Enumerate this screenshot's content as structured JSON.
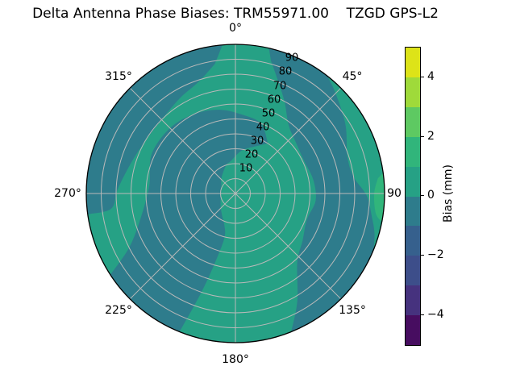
{
  "title": "Delta Antenna Phase Biases: TRM55971.00    TZGD GPS-L2",
  "chart_data": {
    "type": "heatmap",
    "subtype": "polar-filled-contour",
    "title": "Delta Antenna Phase Biases: TRM55971.00    TZGD GPS-L2",
    "angular_tick_labels": [
      "0°",
      "45°",
      "90",
      "135°",
      "180°",
      "225°",
      "270°",
      "315°"
    ],
    "radial_tick_labels": [
      "10",
      "20",
      "30",
      "40",
      "50",
      "60",
      "70",
      "80",
      "90"
    ],
    "radial_range": [
      0,
      100
    ],
    "grid": "on",
    "colorbar": {
      "label": "Bias (mm)",
      "tick_labels": [
        "4",
        "2",
        "0",
        "−2",
        "−4"
      ],
      "range": [
        -5,
        5
      ],
      "segment_colors_top_to_bottom": [
        "#dde318",
        "#9fda3a",
        "#5ec962",
        "#31b57b",
        "#26a185",
        "#2e7c8c",
        "#36608d",
        "#3d4e8a",
        "#46327e",
        "#470d60"
      ]
    },
    "palette": {
      "band_0_to_1_mm": "#26a185",
      "band_minus1_to_0_mm": "#2e7c8c",
      "band_1_to_2_mm": "#31b57b",
      "grid_line": "#b9b9b9",
      "outline": "#000000"
    },
    "regions_note": "filled contour regions in (azimuth_deg, radius_0_100) polar coords; ops: M=move, A=rim arc [az,r,sweep], C=smooth curve through points, Z=close",
    "regions": {
      "dark_nw_rim_crescent": [
        [
          "M",
          355,
          100
        ],
        [
          "A",
          262,
          100,
          0
        ],
        [
          "C",
          [
            [
              263,
              84
            ],
            [
              272,
              79
            ],
            [
              286,
              73
            ],
            [
              300,
              70
            ],
            [
              315,
              70
            ],
            [
              330,
              74
            ],
            [
              342,
              79
            ],
            [
              351,
              88
            ]
          ]
        ],
        [
          "Z"
        ]
      ],
      "dark_center_spiral_sw": [
        [
          "M",
          33,
          40
        ],
        [
          "C",
          [
            [
              20,
              50
            ],
            [
              5,
              53
            ],
            [
              350,
              57
            ],
            [
              333,
              60
            ],
            [
              315,
              62
            ],
            [
              295,
              62
            ],
            [
              275,
              58
            ],
            [
              255,
              66
            ],
            [
              243,
              80
            ],
            [
              237,
              100
            ]
          ]
        ],
        [
          "A",
          202,
          100,
          0
        ],
        [
          "C",
          [
            [
              199,
              70
            ],
            [
              196,
              45
            ],
            [
              194,
              30
            ],
            [
              200,
              22
            ],
            [
              212,
              17
            ],
            [
              230,
              13
            ],
            [
              258,
              10
            ],
            [
              290,
              10
            ],
            [
              318,
              14
            ],
            [
              342,
              20
            ],
            [
              352,
              22
            ],
            [
              8,
              29
            ],
            [
              22,
              34
            ]
          ]
        ],
        [
          "Z"
        ]
      ],
      "dark_east_band": [
        [
          "M",
          13,
          100
        ],
        [
          "A",
          38,
          100,
          1
        ],
        [
          "C",
          [
            [
              45,
              95
            ],
            [
              58,
              87
            ],
            [
              72,
              79
            ],
            [
              82,
              80
            ],
            [
              91,
              88
            ],
            [
              100,
              93
            ],
            [
              106,
              97
            ],
            [
              112,
              100
            ]
          ]
        ],
        [
          "A",
          158,
          100,
          1
        ],
        [
          "C",
          [
            [
              150,
              83
            ],
            [
              138,
              62
            ],
            [
              125,
              55
            ],
            [
              110,
              51
            ],
            [
              95,
              54
            ],
            [
              80,
              53
            ],
            [
              65,
              51
            ],
            [
              50,
              53
            ],
            [
              38,
              58
            ],
            [
              28,
              70
            ],
            [
              20,
              82
            ],
            [
              15,
              92
            ]
          ]
        ],
        [
          "Z"
        ]
      ],
      "bright_east_rim_sliver": [
        [
          "M",
          82,
          100
        ],
        [
          "A",
          101,
          100,
          1
        ],
        [
          "C",
          [
            [
              98,
              95
            ],
            [
              90,
              93
            ],
            [
              84,
              96
            ]
          ]
        ],
        [
          "Z"
        ]
      ]
    }
  },
  "azimuth_labels": {
    "n0": "0°",
    "n45": "45°",
    "n90": "90",
    "n135": "135°",
    "n180": "180°",
    "n225": "225°",
    "n270": "270°",
    "n315": "315°"
  }
}
